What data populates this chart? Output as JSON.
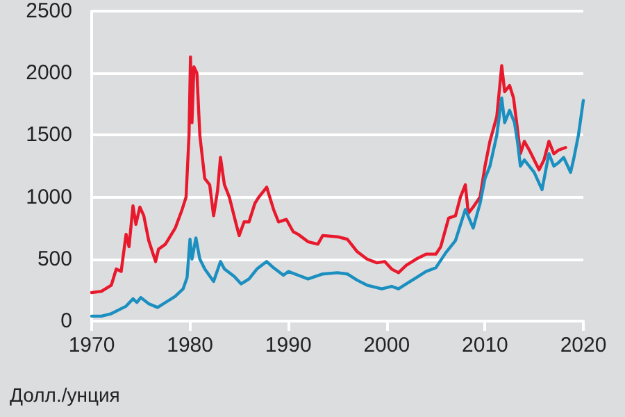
{
  "chart_data": {
    "type": "line",
    "ylabel": "Долл./унция",
    "xlim": [
      1970,
      2020
    ],
    "xticks": [
      1970,
      1980,
      1990,
      2000,
      2010,
      2020
    ],
    "ylim": [
      0,
      2500
    ],
    "yticks": [
      0,
      500,
      1000,
      1500,
      2000,
      2500
    ],
    "grid": "y",
    "marker": "none",
    "line_style": "solid",
    "series": [
      {
        "color": "#e8192c",
        "x": [
          1970,
          1971,
          1972,
          1972.5,
          1973,
          1973.5,
          1973.8,
          1974.2,
          1974.5,
          1974.9,
          1975.3,
          1975.8,
          1976.5,
          1976.8,
          1977.5,
          1978.5,
          1979.2,
          1979.6,
          1979.9,
          1980.05,
          1980.2,
          1980.4,
          1980.7,
          1981,
          1981.5,
          1982,
          1982.4,
          1982.8,
          1983.1,
          1983.5,
          1984,
          1984.7,
          1985,
          1985.5,
          1986,
          1986.6,
          1987,
          1987.8,
          1988.5,
          1989,
          1989.8,
          1990.5,
          1991,
          1992,
          1993,
          1993.5,
          1995,
          1996,
          1997,
          1998,
          1999,
          1999.8,
          2000.5,
          2001.2,
          2002,
          2003,
          2004,
          2005,
          2005.5,
          2006.3,
          2007,
          2007.5,
          2008,
          2008.3,
          2008.8,
          2009.5,
          2010,
          2010.5,
          2011.2,
          2011.7,
          2012,
          2012.5,
          2012.9,
          2013.3,
          2013.6,
          2014,
          2014.5,
          2015,
          2015.5,
          2016,
          2016.5,
          2017,
          2017.5,
          2018.2
        ],
        "values": [
          230,
          240,
          290,
          420,
          400,
          700,
          600,
          930,
          780,
          920,
          850,
          650,
          480,
          580,
          620,
          750,
          900,
          1000,
          1500,
          2130,
          1600,
          2050,
          2000,
          1500,
          1150,
          1100,
          850,
          1050,
          1320,
          1100,
          1000,
          780,
          690,
          800,
          800,
          950,
          1000,
          1080,
          900,
          800,
          820,
          720,
          700,
          640,
          620,
          690,
          680,
          660,
          560,
          500,
          470,
          480,
          420,
          390,
          450,
          500,
          540,
          540,
          600,
          830,
          850,
          1000,
          1100,
          870,
          920,
          1000,
          1250,
          1450,
          1650,
          2060,
          1850,
          1900,
          1800,
          1550,
          1350,
          1450,
          1380,
          1300,
          1220,
          1300,
          1450,
          1350,
          1380,
          1400
        ]
      },
      {
        "color": "#1a8fc0",
        "x": [
          1970,
          1971,
          1972,
          1973,
          1973.5,
          1974.2,
          1974.6,
          1975,
          1975.8,
          1976.7,
          1977.5,
          1978.5,
          1979.3,
          1979.7,
          1980,
          1980.2,
          1980.6,
          1981,
          1981.5,
          1982.4,
          1983.1,
          1983.5,
          1984.5,
          1985.2,
          1986,
          1986.8,
          1987.8,
          1988.5,
          1989.5,
          1990,
          1991,
          1992,
          1993.5,
          1995,
          1996,
          1997,
          1998,
          1999.5,
          2000.5,
          2001.2,
          2002,
          2003,
          2004,
          2005,
          2006,
          2007,
          2008,
          2008.8,
          2009.5,
          2010,
          2010.5,
          2011.2,
          2011.7,
          2012,
          2012.5,
          2013,
          2013.3,
          2013.6,
          2014,
          2014.5,
          2015,
          2015.8,
          2016.5,
          2017,
          2017.5,
          2018,
          2018.7,
          2019,
          2019.5,
          2020
        ],
        "values": [
          40,
          40,
          60,
          100,
          120,
          180,
          150,
          190,
          140,
          110,
          150,
          200,
          260,
          350,
          660,
          500,
          670,
          500,
          420,
          320,
          480,
          420,
          360,
          300,
          340,
          420,
          480,
          430,
          370,
          400,
          370,
          340,
          380,
          390,
          380,
          330,
          290,
          260,
          280,
          260,
          300,
          350,
          400,
          430,
          550,
          650,
          900,
          750,
          950,
          1150,
          1250,
          1500,
          1800,
          1600,
          1700,
          1600,
          1450,
          1250,
          1300,
          1250,
          1200,
          1060,
          1350,
          1250,
          1280,
          1320,
          1200,
          1300,
          1500,
          1780
        ]
      }
    ]
  }
}
